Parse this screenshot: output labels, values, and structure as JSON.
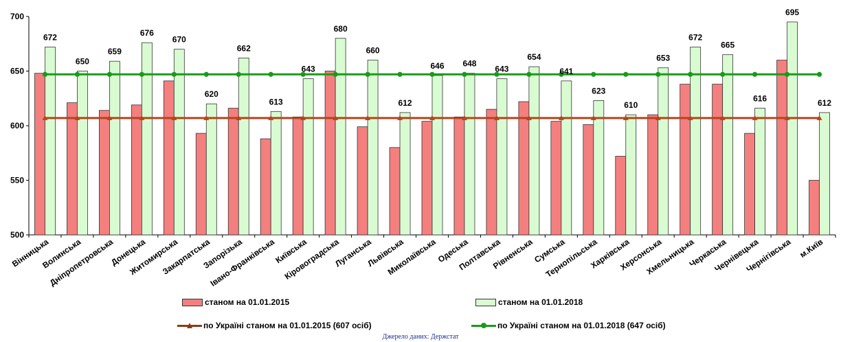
{
  "chart_data": {
    "type": "bar",
    "title": "",
    "xlabel": "",
    "ylabel": "",
    "ylim": [
      500,
      700
    ],
    "yticks": [
      500,
      550,
      600,
      650,
      700
    ],
    "grid": false,
    "legend_position": "bottom",
    "categories": [
      "Вінницька",
      "Волинська",
      "Дніпропетровська",
      "Донецька",
      "Житомирська",
      "Закарпатська",
      "Запорізька",
      "Івано-Франківська",
      "Київська",
      "Кіровоградська",
      "Луганська",
      "Львівська",
      "Миколаївська",
      "Одеська",
      "Полтавська",
      "Рівненська",
      "Сумська",
      "Тернопільська",
      "Харківська",
      "Херсонська",
      "Хмельницька",
      "Черкаська",
      "Чернівецька",
      "Чернігівська",
      "м.Київ"
    ],
    "series": [
      {
        "name": "станом на 01.01.2015",
        "color": "#f47f7f",
        "values": [
          648,
          621,
          614,
          619,
          641,
          593,
          616,
          588,
          608,
          650,
          599,
          580,
          604,
          608,
          615,
          622,
          604,
          601,
          572,
          610,
          638,
          638,
          593,
          660,
          550
        ]
      },
      {
        "name": "станом на 01.01.2018",
        "color": "#d9fbd2",
        "values": [
          672,
          650,
          659,
          676,
          670,
          620,
          662,
          613,
          643,
          680,
          660,
          612,
          646,
          648,
          643,
          654,
          641,
          623,
          610,
          653,
          672,
          665,
          616,
          695,
          612
        ]
      }
    ],
    "data_labels_series": "станом на 01.01.2018",
    "reference_lines": [
      {
        "name": "по Україні станом на 01.01.2015 (607 осіб)",
        "value": 607,
        "color": "#b5451c",
        "marker": "triangle-icon"
      },
      {
        "name": "по Україні станом на 01.01.2018 (647 осіб)",
        "value": 647,
        "color": "#1a9a1a",
        "marker": "circle-icon"
      }
    ],
    "source": "Джерело даних:  Держстат"
  }
}
